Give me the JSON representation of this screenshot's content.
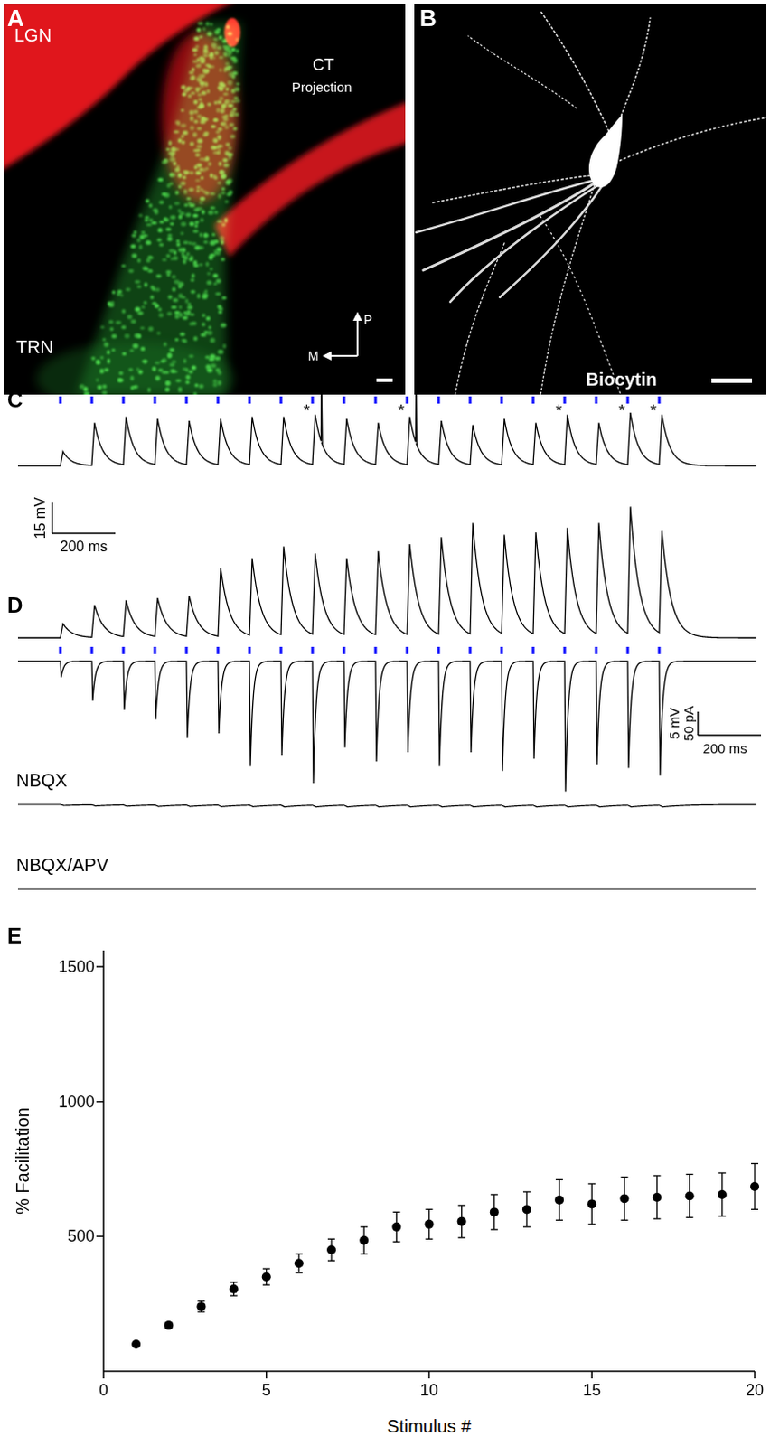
{
  "panels": {
    "A": {
      "letter": "A",
      "labels": {
        "lgn": "LGN",
        "ct": "CT",
        "projection": "Projection",
        "trn": "TRN"
      },
      "compass": {
        "posterior": "P",
        "medial": "M"
      }
    },
    "B": {
      "letter": "B",
      "label": "Biocytin"
    },
    "C": {
      "letter": "C",
      "stimulus_interval_ms": 100,
      "peaks_mV": [
        7,
        21,
        24,
        23,
        22,
        23,
        24,
        24,
        25,
        23,
        21,
        24,
        22,
        20,
        23,
        21,
        25,
        21,
        26,
        25
      ],
      "spike_peaks_mV": [
        null,
        null,
        null,
        null,
        null,
        null,
        null,
        null,
        45,
        null,
        null,
        45,
        null,
        null,
        null,
        null,
        null,
        null,
        null,
        null
      ],
      "asterisk": "*",
      "asterisk_stimuli": [
        9,
        12,
        17,
        19,
        20
      ],
      "scale_bar": {
        "mV": 15,
        "mV_label": "15 mV",
        "ms": 200,
        "ms_label": "200 ms"
      }
    },
    "D": {
      "letter": "D",
      "stimulus_interval_ms": 100,
      "peaks_mV": [
        3,
        7,
        8,
        8.5,
        9,
        15,
        17,
        19.5,
        18,
        17,
        18.5,
        20,
        21.5,
        24.5,
        22,
        22.5,
        23.5,
        24.5,
        28,
        23
      ],
      "currents_pA": [
        -34,
        -84,
        -104,
        -124,
        -164,
        -154,
        -224,
        -200,
        -260,
        -184,
        -214,
        -194,
        -224,
        -194,
        -234,
        -208,
        -278,
        -220,
        -228,
        -244
      ],
      "nbqx_label": "NBQX",
      "nbqx_pA": [
        -2,
        -3,
        -3.5,
        -4,
        -4,
        -4.5,
        -4.5,
        -5,
        -5,
        -5,
        -5,
        -5,
        -5,
        -5,
        -5,
        -5,
        -5,
        -5,
        -5,
        -5
      ],
      "nbqx_apv_label": "NBQX/APV",
      "nbqx_apv_pA": [
        0,
        0,
        0,
        0,
        0,
        0,
        0,
        0,
        0,
        0,
        0,
        0,
        0,
        0,
        0,
        0,
        0,
        0,
        0,
        0
      ],
      "scale_bar": {
        "mV": 5,
        "mV_label": "5 mV",
        "pA": 50,
        "pA_label": "50 pA",
        "ms": 200,
        "ms_label": "200 ms"
      }
    },
    "E": {
      "letter": "E"
    }
  },
  "chart_data": {
    "type": "scatter",
    "x_label": "Stimulus #",
    "y_label": "% Facilitation",
    "x": [
      1,
      2,
      3,
      4,
      5,
      6,
      7,
      8,
      9,
      10,
      11,
      12,
      13,
      14,
      15,
      16,
      17,
      18,
      19,
      20
    ],
    "values": [
      100,
      170,
      240,
      305,
      350,
      400,
      450,
      485,
      535,
      545,
      555,
      590,
      600,
      635,
      620,
      640,
      645,
      650,
      655,
      685
    ],
    "errors": [
      5,
      10,
      20,
      25,
      30,
      35,
      40,
      50,
      55,
      55,
      60,
      65,
      65,
      75,
      75,
      80,
      80,
      80,
      80,
      85
    ],
    "xlim": [
      0,
      20
    ],
    "ylim": [
      0,
      1560
    ],
    "xticks": [
      0,
      5,
      10,
      15,
      20
    ],
    "yticks": [
      500,
      1000,
      1500
    ],
    "color": "#000000",
    "marker": "circle"
  }
}
